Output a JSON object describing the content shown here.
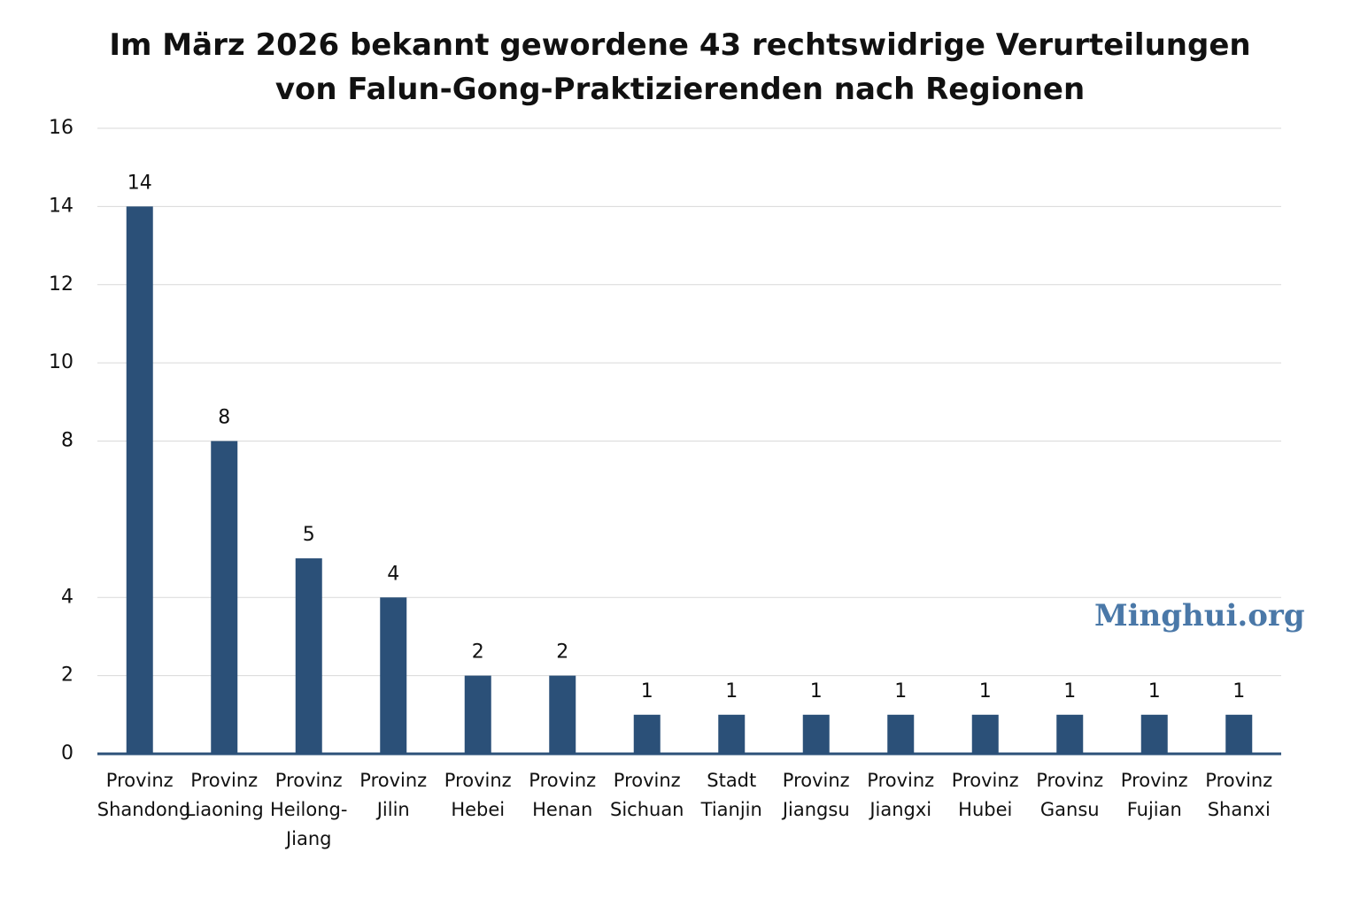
{
  "chart_data": {
    "type": "bar",
    "title": "Im März 2026 bekannt gewordene 43 rechtswidrige Verurteilungen\nvon Falun-Gong-Praktizierenden nach Regionen",
    "categories": [
      "Provinz\nShandong",
      "Provinz\nLiaoning",
      "Provinz\nHeilong-\nJiang",
      "Provinz\nJilin",
      "Provinz\nHebei",
      "Provinz\nHenan",
      "Provinz\nSichuan",
      "Stadt\nTianjin",
      "Provinz\nJiangsu",
      "Provinz\nJiangxi",
      "Provinz\nHubei",
      "Provinz\nGansu",
      "Provinz\nFujian",
      "Provinz\nShanxi"
    ],
    "values": [
      14,
      8,
      5,
      4,
      2,
      2,
      1,
      1,
      1,
      1,
      1,
      1,
      1,
      1
    ],
    "color": "#2b5078",
    "ylim": [
      0,
      16
    ],
    "yticks": [
      0,
      2,
      4,
      8,
      10,
      12,
      14,
      16
    ],
    "grid": true,
    "watermark": "Minghui.org"
  }
}
